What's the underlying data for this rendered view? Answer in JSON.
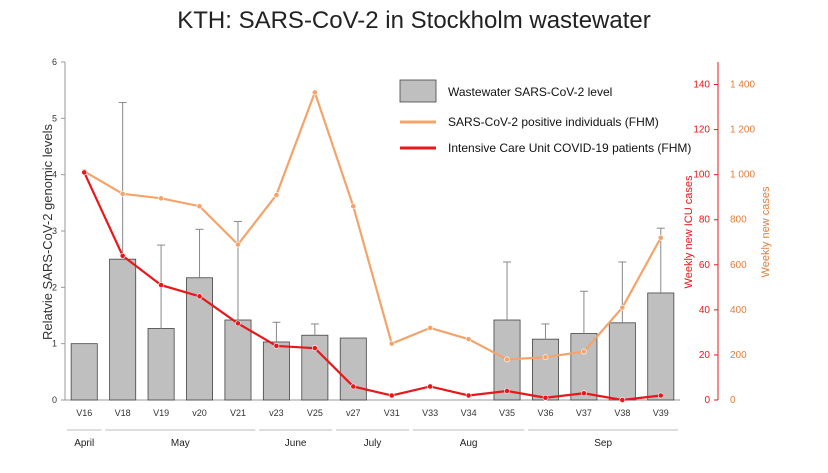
{
  "chart_data": {
    "type": "bar",
    "title": "KTH: SARS-CoV-2 in Stockholm wastewater",
    "ylabel_left": "Relatvie SARS-CoV-2 genomic levels",
    "ylabel_right_icu": "Weekly new ICU cases",
    "ylabel_right_cases": "Weekly new cases",
    "categories": [
      "V16",
      "V18",
      "V19",
      "v20",
      "V21",
      "v23",
      "V25",
      "v27",
      "V31",
      "V33",
      "V34",
      "V35",
      "V36",
      "V37",
      "V38",
      "V39"
    ],
    "ylim_left": [
      0,
      6
    ],
    "yticks_left": [
      "0",
      "1",
      "2",
      "3",
      "4",
      "5",
      "6"
    ],
    "ylim_icu": [
      0,
      150
    ],
    "yticks_icu": [
      "0",
      "20",
      "40",
      "60",
      "80",
      "100",
      "120",
      "140"
    ],
    "ylim_cases": [
      0,
      1500
    ],
    "yticks_cases": [
      "0",
      "200",
      "400",
      "600",
      "800",
      "1 000",
      "1 200",
      "1 400"
    ],
    "months": [
      "April",
      "May",
      "June",
      "July",
      "Aug",
      "Sep"
    ],
    "series": [
      {
        "name": "Wastewater SARS-CoV-2 level",
        "kind": "bar",
        "axis": "left",
        "color": "#bfbfbf",
        "values": [
          1.0,
          2.5,
          1.27,
          2.17,
          1.42,
          1.03,
          1.15,
          1.1,
          0,
          0,
          0,
          1.42,
          1.08,
          1.18,
          1.37,
          1.9
        ],
        "error_upper": [
          null,
          5.28,
          2.75,
          3.03,
          3.17,
          1.38,
          1.35,
          null,
          null,
          null,
          null,
          2.45,
          1.35,
          1.93,
          2.45,
          3.05
        ]
      },
      {
        "name": "SARS-CoV-2 positive individuals (FHM)",
        "kind": "line",
        "axis": "cases",
        "color": "#f4a46a",
        "values": [
          1015,
          915,
          895,
          860,
          690,
          910,
          1365,
          860,
          250,
          320,
          270,
          180,
          190,
          215,
          410,
          720
        ]
      },
      {
        "name": "Intensive Care Unit COVID-19 patients (FHM)",
        "kind": "line",
        "axis": "icu",
        "color": "#e8171a",
        "values": [
          101,
          64,
          51,
          46,
          34,
          24,
          23,
          6,
          2,
          6,
          2,
          4,
          1,
          3,
          0,
          2
        ]
      }
    ],
    "legend_position": "top-right",
    "grid": false
  }
}
